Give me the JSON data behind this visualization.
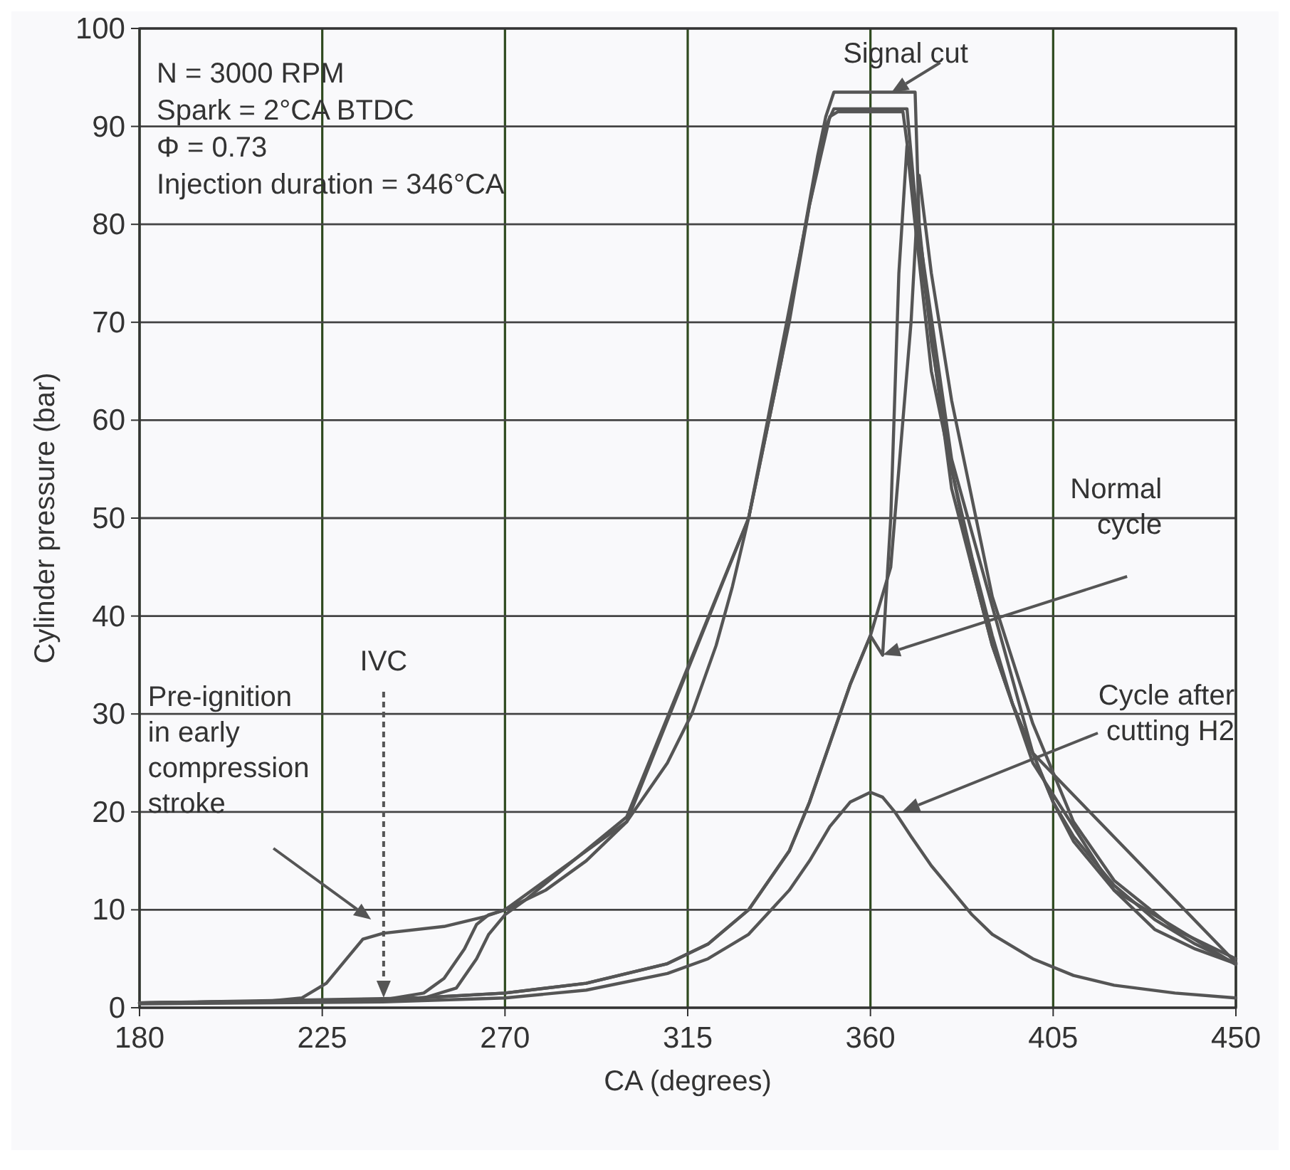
{
  "chart_data": {
    "type": "line",
    "xlabel": "CA (degrees)",
    "ylabel": "Cylinder pressure (bar)",
    "xlim": [
      180,
      450
    ],
    "xticks": [
      180,
      225,
      270,
      315,
      360,
      405,
      450
    ],
    "ylim": [
      0,
      100
    ],
    "yticks": [
      0,
      10,
      20,
      30,
      40,
      50,
      60,
      70,
      80,
      90,
      100
    ],
    "grid": true,
    "line_style": "solid",
    "marker": "none",
    "series": [
      {
        "color": "#555555",
        "x": [
          180,
          210,
          220,
          226,
          231,
          235,
          240,
          255,
          265,
          270,
          280,
          290,
          300,
          310,
          316,
          322,
          326,
          330,
          334,
          338,
          341,
          344,
          347,
          349,
          351,
          371,
          372,
          375,
          380,
          385,
          390,
          395,
          400,
          405,
          410,
          420,
          430,
          440,
          450
        ],
        "values": [
          0.5,
          0.6,
          1,
          2.5,
          5,
          7,
          7.6,
          8.3,
          9.3,
          10,
          12,
          15,
          19,
          25,
          30,
          37,
          43,
          50,
          58,
          66,
          73,
          80,
          87,
          91,
          93.5,
          93.5,
          80,
          68,
          55,
          46,
          38,
          31,
          26,
          21,
          17,
          12,
          8,
          6,
          4.5
        ]
      },
      {
        "color": "#555555",
        "x": [
          180,
          240,
          250,
          255,
          260,
          263,
          266,
          270,
          300,
          330,
          340,
          345,
          349,
          351,
          369,
          372,
          380,
          390,
          400,
          420,
          450
        ],
        "values": [
          0.5,
          0.8,
          1.5,
          3,
          6,
          8.5,
          9.5,
          10,
          19,
          50,
          70,
          82,
          90,
          91.8,
          91.8,
          78,
          53,
          37,
          25,
          12,
          4.4
        ]
      },
      {
        "color": "#555555",
        "x": [
          180,
          250,
          258,
          263,
          266,
          270,
          275,
          300,
          330,
          345,
          350,
          352,
          368,
          371,
          380,
          400,
          450
        ],
        "values": [
          0.5,
          1,
          2,
          5,
          7.5,
          9.5,
          11,
          19.5,
          50,
          82,
          91,
          91.5,
          91.5,
          82,
          56,
          26,
          4.6
        ]
      },
      {
        "color": "#555555",
        "x": [
          180,
          240,
          270,
          290,
          310,
          320,
          330,
          340,
          345,
          350,
          355,
          360,
          363,
          365,
          367,
          369,
          371,
          375,
          380,
          385,
          390,
          395,
          400,
          405,
          410,
          420,
          430,
          440,
          450
        ],
        "values": [
          0.5,
          0.8,
          1.5,
          2.5,
          4.5,
          6.5,
          10,
          16,
          21,
          27,
          33,
          38,
          36,
          50,
          75,
          88,
          80,
          65,
          55,
          45,
          37,
          31,
          26,
          21,
          17.5,
          12.5,
          9,
          6.5,
          4.5
        ]
      },
      {
        "color": "#555555",
        "x": [
          180,
          240,
          270,
          290,
          310,
          320,
          330,
          340,
          345,
          350,
          355,
          360,
          365,
          370,
          372,
          375,
          380,
          390,
          400,
          410,
          420,
          435,
          450
        ],
        "values": [
          0.5,
          0.8,
          1.5,
          2.5,
          4.5,
          6.5,
          10,
          16,
          21,
          27,
          33,
          38,
          45,
          70,
          85,
          75,
          62,
          42,
          29,
          19,
          13,
          8,
          5
        ]
      },
      {
        "color": "#555555",
        "x": [
          180,
          240,
          270,
          290,
          310,
          320,
          330,
          340,
          345,
          350,
          355,
          360,
          363,
          366,
          370,
          375,
          380,
          385,
          390,
          400,
          410,
          420,
          435,
          450
        ],
        "values": [
          0.4,
          0.6,
          1,
          1.8,
          3.5,
          5,
          7.5,
          12,
          15,
          18.5,
          21,
          22,
          21.5,
          20,
          17.5,
          14.5,
          12,
          9.5,
          7.5,
          5,
          3.3,
          2.3,
          1.5,
          1
        ]
      }
    ],
    "annotations": [
      "N = 3000 RPM",
      "Spark = 2°CA BTDC",
      "Φ = 0.73",
      "Injection duration = 346°CA",
      "Signal cut",
      "Normal cycle",
      "Cycle after cutting H2",
      "IVC",
      "Pre-ignition in early compression stroke"
    ]
  }
}
